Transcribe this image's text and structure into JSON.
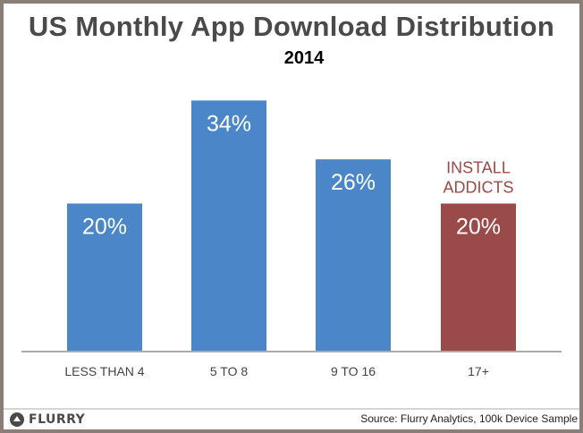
{
  "chart_data": {
    "type": "bar",
    "title": "US Monthly App Download Distribution",
    "subtitle": "2014",
    "categories": [
      "LESS THAN 4",
      "5 TO 8",
      "9 TO 16",
      "17+"
    ],
    "values": [
      20,
      34,
      26,
      20
    ],
    "value_labels": [
      "20%",
      "34%",
      "26%",
      "20%"
    ],
    "unit": "%",
    "ylim": [
      0,
      40
    ],
    "grid": false,
    "legend": "none",
    "colors": [
      "#4a86c8",
      "#4a86c8",
      "#4a86c8",
      "#9a4a48"
    ],
    "annotations": [
      {
        "category": "17+",
        "lines": [
          "INSTALL",
          "ADDICTS"
        ],
        "color": "#9a4a48"
      }
    ]
  },
  "footer": {
    "logo": "FLURRY",
    "source": "Source: Flurry Analytics, 100k Device Sample"
  },
  "colors": {
    "axis": "#b0aaa5",
    "tick_text": "#444444",
    "value_text": "#ffffff"
  }
}
